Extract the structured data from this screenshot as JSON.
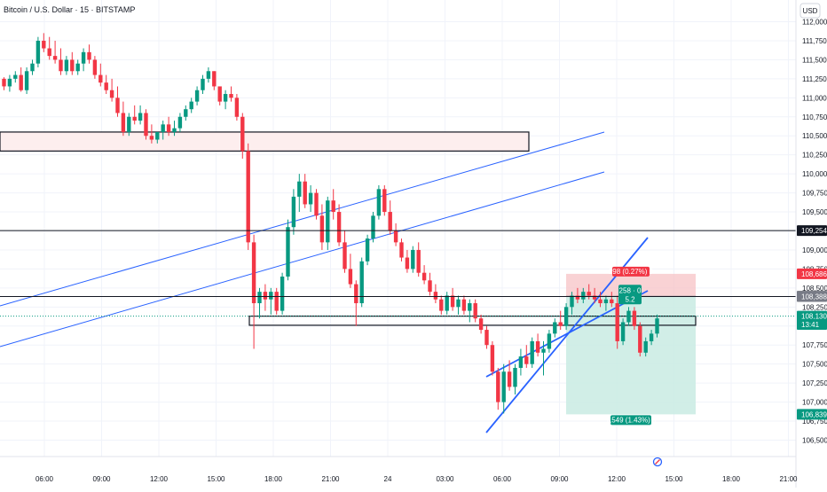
{
  "header": {
    "title": "Bitcoin / U.S. Dollar · 15 · BITSTAMP",
    "currency": "USD"
  },
  "chart_data": {
    "type": "candlestick",
    "title": "Bitcoin / U.S. Dollar · 15 · BITSTAMP",
    "currency": "USD",
    "ylim": [
      106320,
      112500
    ],
    "y_ticks": [
      106500,
      106750,
      107000,
      107250,
      107500,
      107750,
      108000,
      108250,
      108500,
      108750,
      109000,
      109250,
      109500,
      109750,
      110000,
      110250,
      110500,
      110750,
      111000,
      111250,
      111500,
      111750,
      112000
    ],
    "y_tick_labels": [
      "106,500",
      "106,750",
      "107,000",
      "107,250",
      "107,500",
      "107,750",
      "108,000",
      "108,250",
      "108,500",
      "108,750",
      "109,000",
      "109,250",
      "109,500",
      "109,750",
      "110,000",
      "110,250",
      "110,500",
      "110,750",
      "111,000",
      "111,250",
      "111,500",
      "111,750",
      "112,000"
    ],
    "x_tick_labels": [
      "06:00",
      "09:00",
      "12:00",
      "15:00",
      "18:00",
      "21:00",
      "24",
      "03:00",
      "06:00",
      "09:00",
      "12:00",
      "15:00",
      "18:00",
      "21:00"
    ],
    "series": [
      {
        "candles": [
          [
            111250,
            111270,
            111100,
            111150
          ],
          [
            111150,
            111300,
            111080,
            111250
          ],
          [
            111250,
            111350,
            111200,
            111300
          ],
          [
            111300,
            111400,
            111080,
            111100
          ],
          [
            111100,
            111400,
            111050,
            111350
          ],
          [
            111350,
            111500,
            111300,
            111450
          ],
          [
            111450,
            111800,
            111400,
            111750
          ],
          [
            111750,
            111850,
            111600,
            111650
          ],
          [
            111650,
            111800,
            111500,
            111550
          ],
          [
            111550,
            111750,
            111450,
            111500
          ],
          [
            111500,
            111650,
            111300,
            111350
          ],
          [
            111350,
            111550,
            111300,
            111500
          ],
          [
            111500,
            111600,
            111300,
            111350
          ],
          [
            111350,
            111500,
            111300,
            111450
          ],
          [
            111450,
            111650,
            111350,
            111600
          ],
          [
            111600,
            111700,
            111450,
            111500
          ],
          [
            111500,
            111550,
            111250,
            111300
          ],
          [
            111300,
            111450,
            111150,
            111200
          ],
          [
            111200,
            111300,
            111050,
            111100
          ],
          [
            111100,
            111250,
            110950,
            111000
          ],
          [
            111000,
            111150,
            110750,
            110800
          ],
          [
            110800,
            110950,
            110500,
            110550
          ],
          [
            110550,
            110800,
            110500,
            110750
          ],
          [
            110750,
            110900,
            110650,
            110700
          ],
          [
            110700,
            110900,
            110650,
            110800
          ],
          [
            110800,
            110850,
            110450,
            110500
          ],
          [
            110500,
            110650,
            110400,
            110450
          ],
          [
            110450,
            110550,
            110400,
            110550
          ],
          [
            110550,
            110700,
            110450,
            110650
          ],
          [
            110650,
            110750,
            110500,
            110550
          ],
          [
            110550,
            110700,
            110500,
            110600
          ],
          [
            110600,
            110800,
            110550,
            110750
          ],
          [
            110750,
            110900,
            110700,
            110850
          ],
          [
            110850,
            111000,
            110800,
            110950
          ],
          [
            110950,
            111150,
            110900,
            111100
          ],
          [
            111100,
            111300,
            111050,
            111250
          ],
          [
            111250,
            111400,
            111200,
            111350
          ],
          [
            111350,
            111350,
            111100,
            111150
          ],
          [
            111150,
            111100,
            110900,
            110950
          ],
          [
            110950,
            111100,
            110850,
            111050
          ],
          [
            111050,
            111150,
            110950,
            111000
          ],
          [
            111000,
            111050,
            110700,
            110750
          ],
          [
            110750,
            110800,
            110200,
            110300
          ],
          [
            110300,
            110400,
            109000,
            109100
          ],
          [
            109100,
            109200,
            107700,
            108300
          ],
          [
            108300,
            108500,
            108100,
            108450
          ],
          [
            108450,
            108550,
            108200,
            108350
          ],
          [
            108350,
            108500,
            108150,
            108450
          ],
          [
            108450,
            108500,
            108150,
            108200
          ],
          [
            108200,
            108700,
            108150,
            108650
          ],
          [
            108650,
            109400,
            108600,
            109300
          ],
          [
            109300,
            109800,
            109200,
            109700
          ],
          [
            109700,
            110000,
            109500,
            109900
          ],
          [
            109900,
            110000,
            109550,
            109600
          ],
          [
            109600,
            109850,
            109500,
            109750
          ],
          [
            109750,
            109800,
            109400,
            109450
          ],
          [
            109450,
            109600,
            109000,
            109100
          ],
          [
            109100,
            109700,
            109000,
            109650
          ],
          [
            109650,
            109800,
            109400,
            109500
          ],
          [
            109500,
            109600,
            109050,
            109100
          ],
          [
            109100,
            109250,
            108700,
            108750
          ],
          [
            108750,
            108950,
            108500,
            108550
          ],
          [
            108550,
            108600,
            108000,
            108300
          ],
          [
            108300,
            108900,
            108250,
            108850
          ],
          [
            108850,
            109200,
            108800,
            109150
          ],
          [
            109150,
            109500,
            109100,
            109450
          ],
          [
            109450,
            109850,
            109400,
            109800
          ],
          [
            109800,
            109850,
            109450,
            109500
          ],
          [
            109500,
            109650,
            109200,
            109250
          ],
          [
            109250,
            109350,
            109050,
            109100
          ],
          [
            109100,
            109150,
            108850,
            108900
          ],
          [
            108900,
            109000,
            108700,
            108750
          ],
          [
            108750,
            109050,
            108700,
            109000
          ],
          [
            109000,
            109100,
            108650,
            108700
          ],
          [
            108700,
            108800,
            108550,
            108600
          ],
          [
            108600,
            108700,
            108400,
            108450
          ],
          [
            108450,
            108550,
            108300,
            108350
          ],
          [
            108350,
            108400,
            108150,
            108200
          ],
          [
            108200,
            108450,
            108150,
            108400
          ],
          [
            108400,
            108500,
            108200,
            108250
          ],
          [
            108250,
            108400,
            108150,
            108350
          ],
          [
            108350,
            108400,
            108150,
            108200
          ],
          [
            108200,
            108350,
            108050,
            108300
          ],
          [
            108300,
            108350,
            108050,
            108100
          ],
          [
            108100,
            108150,
            107900,
            107950
          ],
          [
            107950,
            108000,
            107700,
            107750
          ],
          [
            107750,
            107800,
            107350,
            107400
          ],
          [
            107400,
            107450,
            106900,
            107000
          ],
          [
            107000,
            107500,
            106850,
            107400
          ],
          [
            107400,
            107550,
            107150,
            107200
          ],
          [
            107200,
            107500,
            107100,
            107450
          ],
          [
            107450,
            107700,
            107350,
            107600
          ],
          [
            107600,
            107750,
            107450,
            107500
          ],
          [
            107500,
            107850,
            107450,
            107800
          ],
          [
            107800,
            107900,
            107600,
            107650
          ],
          [
            107650,
            107800,
            107350,
            107700
          ],
          [
            107700,
            107950,
            107650,
            107900
          ],
          [
            107900,
            108100,
            107850,
            108050
          ],
          [
            108050,
            108200,
            107950,
            108000
          ],
          [
            108000,
            108300,
            107950,
            108250
          ],
          [
            108250,
            108450,
            108150,
            108400
          ],
          [
            108400,
            108500,
            108300,
            108350
          ],
          [
            108350,
            108500,
            108300,
            108450
          ],
          [
            108450,
            108550,
            108350,
            108400
          ],
          [
            108400,
            108500,
            108300,
            108350
          ],
          [
            108350,
            108450,
            108250,
            108300
          ],
          [
            108300,
            108400,
            108200,
            108350
          ],
          [
            108350,
            108450,
            108250,
            108300
          ],
          [
            108300,
            108400,
            107700,
            107800
          ],
          [
            107800,
            108100,
            107750,
            108050
          ],
          [
            108050,
            108250,
            108000,
            108200
          ],
          [
            108200,
            108250,
            107950,
            108000
          ],
          [
            108000,
            108050,
            107600,
            107650
          ],
          [
            107650,
            107850,
            107600,
            107800
          ],
          [
            107800,
            107950,
            107750,
            107900
          ],
          [
            107900,
            108150,
            107850,
            108100
          ]
        ]
      }
    ],
    "price_labels": [
      {
        "label": "109,254",
        "value": 109254
      },
      {
        "label": "108,686",
        "value": 108686
      },
      {
        "label": "108,390",
        "value": 108390
      },
      {
        "label": "108,388",
        "value": 108388
      },
      {
        "label": "108,130",
        "value": 108130
      },
      {
        "label": "13:41",
        "value": 108020
      },
      {
        "label": "106,839",
        "value": 106839
      }
    ],
    "annotations": {
      "risk_label": "298 (0.27%) 0",
      "mid_label_1": "258 · 0",
      "mid_label_2": "5.2",
      "reward_label": "1,549 (1.43%) 0"
    },
    "zones": [
      {
        "top": 110550,
        "bottom": 110300
      },
      {
        "top": 108130,
        "bottom": 108010
      }
    ],
    "colors": {
      "up": "#089981",
      "down": "#f23645",
      "trend": "#2962ff",
      "risk": "#f7c3c6",
      "reward": "#c9ebe3"
    }
  }
}
